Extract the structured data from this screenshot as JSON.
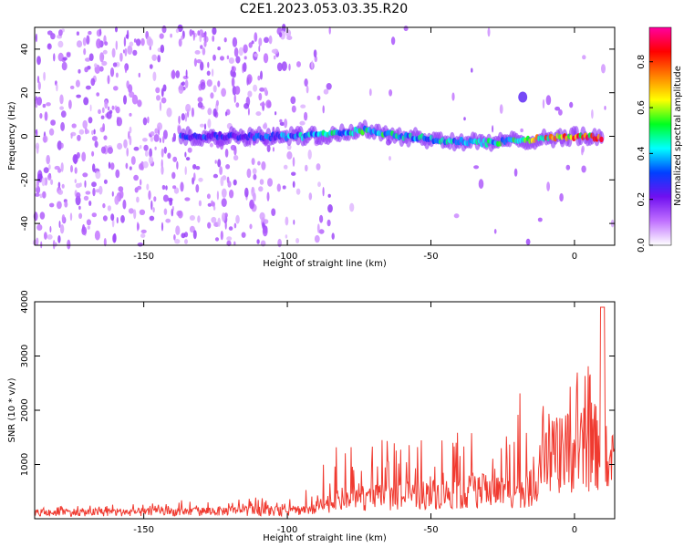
{
  "title": "C2E1.2023.053.03.35.R20",
  "colors": {
    "snr_line": "#f03a30",
    "colormap": [
      "#ffffff",
      "#c070ff",
      "#7010f0",
      "#0040ff",
      "#00ffff",
      "#00ff20",
      "#ffff00",
      "#ff8000",
      "#ff0000",
      "#ff00a0"
    ]
  },
  "chart_data": [
    {
      "type": "heatmap",
      "xlabel": "Height of straight line (km)",
      "ylabel": "Frequency (Hz)",
      "xlim": [
        -188,
        14
      ],
      "ylim": [
        -50,
        50
      ],
      "xticks": [
        -150,
        -100,
        -50,
        0
      ],
      "yticks": [
        -40,
        -20,
        0,
        20,
        40
      ],
      "xtick_labels": [
        "-150",
        "-100",
        "-50",
        "0"
      ],
      "ytick_labels": [
        "-40",
        "-20",
        "0",
        "20",
        "40"
      ],
      "colorbar": {
        "label": "Normalized spectral amplitude",
        "range": [
          0,
          0.95
        ],
        "ticks": [
          "0.0",
          "0.2",
          "0.4",
          "0.6",
          "0.8"
        ]
      },
      "grid": false,
      "ridge": [
        {
          "x": -137,
          "y": 0,
          "amp": 0.4
        },
        {
          "x": -120,
          "y": 0,
          "amp": 0.3
        },
        {
          "x": -95,
          "y": 0,
          "amp": 0.45
        },
        {
          "x": -85,
          "y": 1,
          "amp": 0.5
        },
        {
          "x": -72,
          "y": 3,
          "amp": 0.55
        },
        {
          "x": -60,
          "y": 0,
          "amp": 0.5
        },
        {
          "x": -45,
          "y": -2,
          "amp": 0.5
        },
        {
          "x": -30,
          "y": -3,
          "amp": 0.5
        },
        {
          "x": -20,
          "y": -2,
          "amp": 0.6
        },
        {
          "x": -10,
          "y": -1,
          "amp": 0.8
        },
        {
          "x": 0,
          "y": 0,
          "amp": 0.85
        },
        {
          "x": 10,
          "y": -1,
          "amp": 0.9
        }
      ],
      "side_feature": {
        "x": -18,
        "y": 18,
        "amp": 0.25
      }
    },
    {
      "type": "line",
      "xlabel": "Height of straight line (km)",
      "ylabel": "SNR (10 * v/v)",
      "xlim": [
        -188,
        14
      ],
      "ylim": [
        0,
        4000
      ],
      "xticks": [
        -150,
        -100,
        -50,
        0
      ],
      "yticks": [
        1000,
        2000,
        3000,
        4000
      ],
      "xtick_labels": [
        "-150",
        "-100",
        "-50",
        "0"
      ],
      "ytick_labels": [
        "1000",
        "2000",
        "3000",
        "4000"
      ],
      "grid": false,
      "series": [
        {
          "x": [
            -188,
            -170,
            -150,
            -130,
            -120,
            -110,
            -100,
            -90,
            -85,
            -80,
            -70,
            -60,
            -50,
            -40,
            -30,
            -20,
            -15,
            -10,
            -5,
            0,
            5,
            10,
            12,
            14
          ],
          "base": [
            140,
            150,
            150,
            170,
            180,
            180,
            170,
            250,
            380,
            420,
            480,
            520,
            560,
            600,
            650,
            620,
            700,
            1300,
            1500,
            1550,
            1600,
            1700,
            800,
            1600
          ],
          "peak": [
            250,
            250,
            280,
            380,
            330,
            400,
            350,
            700,
            1300,
            1600,
            1500,
            1400,
            1500,
            1600,
            1800,
            2500,
            2200,
            2400,
            2600,
            2800,
            3100,
            3900,
            1200,
            2100
          ]
        }
      ]
    }
  ]
}
